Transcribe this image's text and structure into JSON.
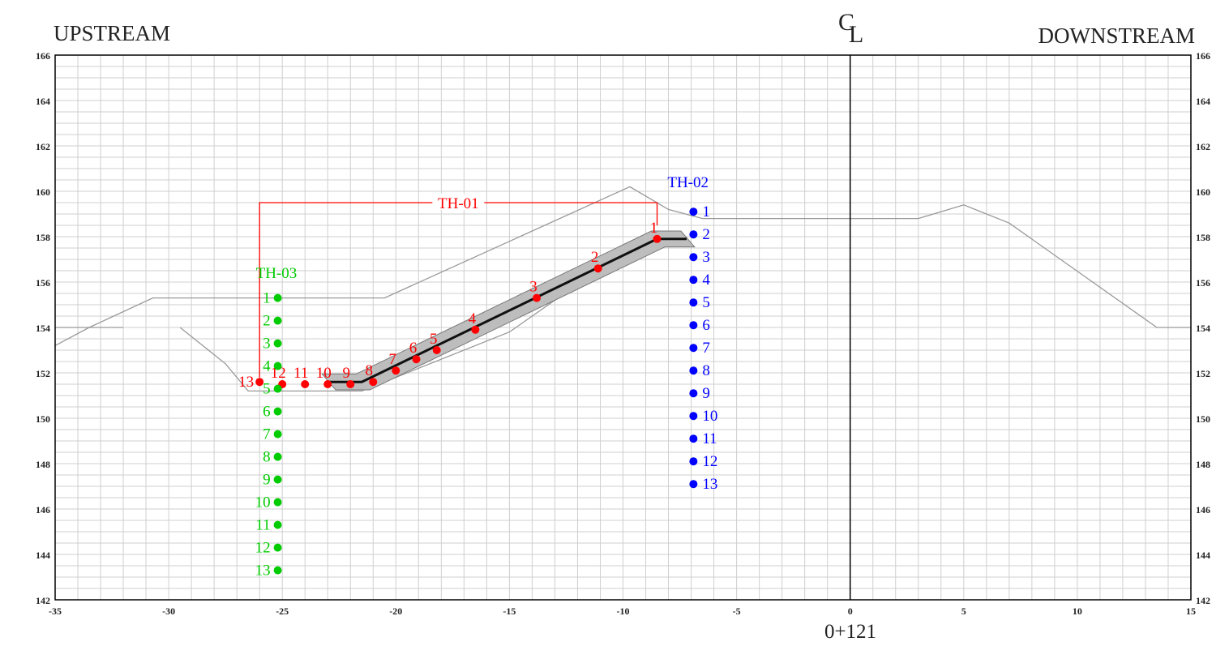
{
  "header": {
    "upstream": "UPSTREAM",
    "downstream": "DOWNSTREAM",
    "centerline": "CL"
  },
  "station": "0+121",
  "axes": {
    "x": {
      "min": -35,
      "max": 15,
      "ticks": [
        -35,
        -30,
        -25,
        -20,
        -15,
        -10,
        -5,
        0,
        5,
        10,
        15
      ]
    },
    "y": {
      "min": 142,
      "max": 166,
      "ticks": [
        142,
        144,
        146,
        148,
        150,
        152,
        154,
        156,
        158,
        160,
        162,
        164,
        166
      ]
    },
    "grid": true
  },
  "colors": {
    "th01": "#ff0000",
    "th02": "#0000ff",
    "th03": "#00cc00",
    "outline": "#999999",
    "core": "#111111"
  },
  "embankment": {
    "outline": [
      [
        -37,
        153.2
      ],
      [
        -33.5,
        154.0
      ],
      [
        -30.7,
        155.3
      ],
      [
        -20.5,
        155.3
      ],
      [
        -9.7,
        160.2
      ],
      [
        -8.0,
        159.2
      ],
      [
        -6.5,
        158.8
      ],
      [
        3.0,
        158.8
      ],
      [
        5.0,
        159.4
      ],
      [
        7.0,
        158.6
      ],
      [
        13.5,
        154.0
      ],
      [
        15,
        154.0
      ]
    ],
    "toe_line": [
      [
        -37,
        154.0
      ],
      [
        -32.0,
        154.0
      ]
    ],
    "cut_inner": [
      [
        -29.5,
        154.0
      ],
      [
        -27.5,
        152.4
      ],
      [
        -26.5,
        151.2
      ],
      [
        -21.5,
        151.2
      ],
      [
        -15.0,
        153.8
      ],
      [
        -9.0,
        158.0
      ]
    ],
    "core_line": [
      [
        -23.0,
        151.6
      ],
      [
        -21.5,
        151.6
      ],
      [
        -8.5,
        157.9
      ],
      [
        -7.2,
        157.9
      ]
    ],
    "cl_x": 0
  },
  "th01": {
    "label": "TH-01",
    "bracket": {
      "x1": -26.0,
      "x2": -8.5,
      "y": 159.5
    },
    "points": [
      {
        "label": "1",
        "x": -8.5,
        "y": 157.9
      },
      {
        "label": "2",
        "x": -11.1,
        "y": 156.6
      },
      {
        "label": "3",
        "x": -13.8,
        "y": 155.3
      },
      {
        "label": "4",
        "x": -16.5,
        "y": 153.9
      },
      {
        "label": "5",
        "x": -18.2,
        "y": 153.0
      },
      {
        "label": "6",
        "x": -19.1,
        "y": 152.6
      },
      {
        "label": "7",
        "x": -20.0,
        "y": 152.1
      },
      {
        "label": "8",
        "x": -21.0,
        "y": 151.6
      },
      {
        "label": "9",
        "x": -22.0,
        "y": 151.5
      },
      {
        "label": "10",
        "x": -23.0,
        "y": 151.5
      },
      {
        "label": "11",
        "x": -24.0,
        "y": 151.5
      },
      {
        "label": "12",
        "x": -25.0,
        "y": 151.5
      },
      {
        "label": "13",
        "x": -26.0,
        "y": 151.6
      }
    ]
  },
  "th02": {
    "label": "TH-02",
    "x": -6.9,
    "points": [
      {
        "label": "1",
        "y": 159.1
      },
      {
        "label": "2",
        "y": 158.1
      },
      {
        "label": "3",
        "y": 157.1
      },
      {
        "label": "4",
        "y": 156.1
      },
      {
        "label": "5",
        "y": 155.1
      },
      {
        "label": "6",
        "y": 154.1
      },
      {
        "label": "7",
        "y": 153.1
      },
      {
        "label": "8",
        "y": 152.1
      },
      {
        "label": "9",
        "y": 151.1
      },
      {
        "label": "10",
        "y": 150.1
      },
      {
        "label": "11",
        "y": 149.1
      },
      {
        "label": "12",
        "y": 148.1
      },
      {
        "label": "13",
        "y": 147.1
      }
    ]
  },
  "th03": {
    "label": "TH-03",
    "x": -25.2,
    "points": [
      {
        "label": "1",
        "y": 155.3
      },
      {
        "label": "2",
        "y": 154.3
      },
      {
        "label": "3",
        "y": 153.3
      },
      {
        "label": "4",
        "y": 152.3
      },
      {
        "label": "5",
        "y": 151.3
      },
      {
        "label": "6",
        "y": 150.3
      },
      {
        "label": "7",
        "y": 149.3
      },
      {
        "label": "8",
        "y": 148.3
      },
      {
        "label": "9",
        "y": 147.3
      },
      {
        "label": "10",
        "y": 146.3
      },
      {
        "label": "11",
        "y": 145.3
      },
      {
        "label": "12",
        "y": 144.3
      },
      {
        "label": "13",
        "y": 143.3
      }
    ]
  }
}
